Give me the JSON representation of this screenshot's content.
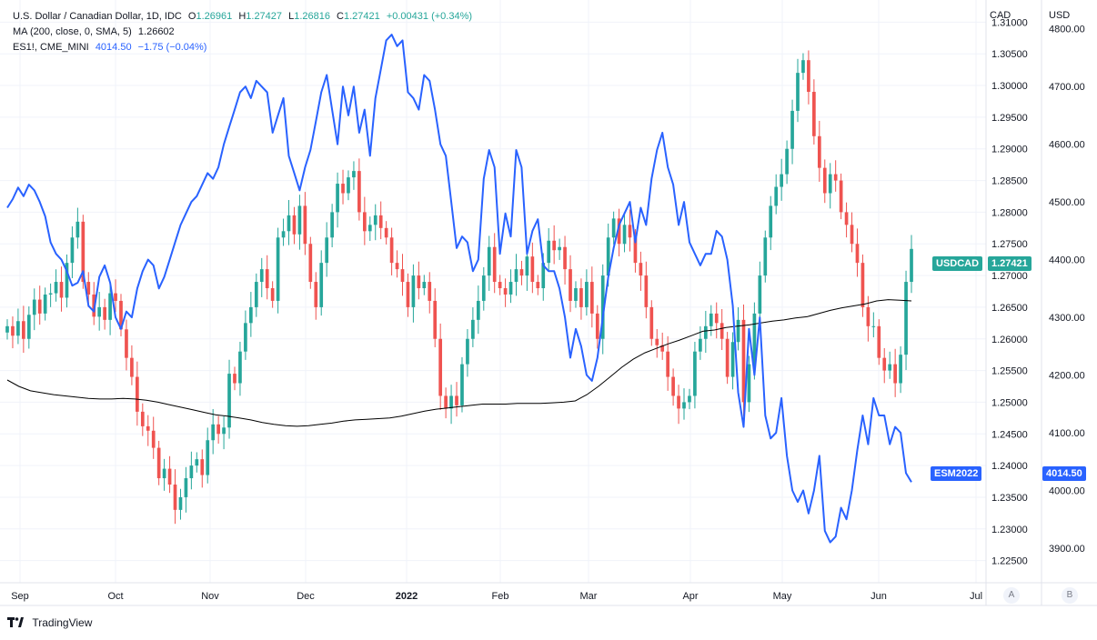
{
  "legend": {
    "title": "U.S. Dollar / Canadian Dollar, 1D, IDC",
    "o_label": "O",
    "o_value": "1.26961",
    "h_label": "H",
    "h_value": "1.27427",
    "l_label": "L",
    "l_value": "1.26816",
    "c_label": "C",
    "c_value": "1.27421",
    "change": "+0.00431 (+0.34%)",
    "ma_label": "MA (200, close, 0, SMA, 5)",
    "ma_value": "1.26602",
    "es_label": "ES1!, CME_MINI",
    "es_value": "4014.50",
    "es_change": "−1.75 (−0.04%)"
  },
  "axis_units": {
    "left": "CAD",
    "right": "USD"
  },
  "tags": {
    "usdcad_name": "USDCAD",
    "usdcad_value": "1.27421",
    "es_name": "ESM2022",
    "es_value": "4014.50"
  },
  "buttons": {
    "a": "A",
    "b": "B"
  },
  "footer": {
    "brand": "TradingView"
  },
  "colors": {
    "up": "#26a69a",
    "down": "#ef5350",
    "es": "#2962ff",
    "ma": "#000000",
    "grid": "#f0f3fa"
  },
  "chart_data": {
    "type": "candlestick+line",
    "x_ticks": [
      "Sep",
      "Oct",
      "Nov",
      "Dec",
      "2022",
      "Feb",
      "Mar",
      "Apr",
      "May",
      "Jun",
      "Jul"
    ],
    "cad_ticks": [
      "1.31000",
      "1.30500",
      "1.30000",
      "1.29500",
      "1.29000",
      "1.28500",
      "1.28000",
      "1.27500",
      "1.27000",
      "1.26500",
      "1.26000",
      "1.25500",
      "1.25000",
      "1.24500",
      "1.24000",
      "1.23500",
      "1.23000",
      "1.22500"
    ],
    "usd_ticks": [
      "4800.00",
      "4700.00",
      "4600.00",
      "4500.00",
      "4400.00",
      "4300.00",
      "4200.00",
      "4100.00",
      "4000.00",
      "3900.00"
    ],
    "cad_range": [
      1.2215,
      1.3135
    ],
    "usd_range": [
      3840,
      4850
    ],
    "usdcad_close": [
      1.262,
      1.2605,
      1.2628,
      1.26,
      1.2638,
      1.2662,
      1.264,
      1.267,
      1.2672,
      1.269,
      1.2665,
      1.272,
      1.276,
      1.2785,
      1.269,
      1.267,
      1.2635,
      1.265,
      1.263,
      1.2672,
      1.266,
      1.2615,
      1.257,
      1.254,
      1.2485,
      1.2462,
      1.2455,
      1.2428,
      1.238,
      1.2395,
      1.237,
      1.233,
      1.235,
      1.238,
      1.24,
      1.241,
      1.2385,
      1.244,
      1.2465,
      1.245,
      1.246,
      1.2545,
      1.253,
      1.258,
      1.2625,
      1.265,
      1.269,
      1.271,
      1.268,
      1.266,
      1.276,
      1.277,
      1.2795,
      1.2765,
      1.281,
      1.275,
      1.269,
      1.265,
      1.272,
      1.276,
      1.28,
      1.2845,
      1.283,
      1.2855,
      1.2865,
      1.28,
      1.277,
      1.278,
      1.2795,
      1.2775,
      1.276,
      1.272,
      1.271,
      1.269,
      1.265,
      1.27,
      1.268,
      1.269,
      1.266,
      1.26,
      1.251,
      1.249,
      1.251,
      1.2495,
      1.256,
      1.26,
      1.263,
      1.266,
      1.27,
      1.2745,
      1.269,
      1.268,
      1.267,
      1.269,
      1.271,
      1.27,
      1.273,
      1.269,
      1.268,
      1.272,
      1.2755,
      1.274,
      1.2745,
      1.271,
      1.266,
      1.268,
      1.265,
      1.269,
      1.264,
      1.26,
      1.27,
      1.276,
      1.279,
      1.275,
      1.278,
      1.276,
      1.272,
      1.27,
      1.265,
      1.26,
      1.259,
      1.258,
      1.254,
      1.251,
      1.249,
      1.25,
      1.251,
      1.258,
      1.26,
      1.262,
      1.264,
      1.2625,
      1.26,
      1.254,
      1.2595,
      1.263,
      1.25,
      1.256,
      1.264,
      1.27,
      1.276,
      1.281,
      1.284,
      1.286,
      1.29,
      1.296,
      1.302,
      1.304,
      1.299,
      1.292,
      1.287,
      1.283,
      1.286,
      1.285,
      1.28,
      1.278,
      1.275,
      1.272,
      1.265,
      1.262,
      1.262,
      1.257,
      1.255,
      1.256,
      1.253,
      1.2575,
      1.269,
      1.2742
    ],
    "es_close": [
      4490,
      4505,
      4525,
      4510,
      4530,
      4520,
      4500,
      4475,
      4430,
      4410,
      4400,
      4380,
      4355,
      4360,
      4380,
      4320,
      4310,
      4370,
      4390,
      4360,
      4300,
      4280,
      4310,
      4300,
      4350,
      4380,
      4400,
      4390,
      4350,
      4370,
      4400,
      4430,
      4460,
      4480,
      4500,
      4510,
      4530,
      4550,
      4540,
      4560,
      4600,
      4630,
      4660,
      4690,
      4700,
      4680,
      4710,
      4700,
      4690,
      4620,
      4650,
      4680,
      4580,
      4550,
      4520,
      4560,
      4590,
      4640,
      4690,
      4720,
      4660,
      4600,
      4700,
      4650,
      4700,
      4620,
      4660,
      4580,
      4680,
      4730,
      4780,
      4790,
      4770,
      4780,
      4690,
      4680,
      4660,
      4720,
      4710,
      4660,
      4600,
      4580,
      4500,
      4420,
      4440,
      4430,
      4380,
      4400,
      4540,
      4590,
      4560,
      4410,
      4480,
      4440,
      4590,
      4560,
      4410,
      4450,
      4470,
      4390,
      4380,
      4380,
      4350,
      4300,
      4230,
      4280,
      4250,
      4200,
      4190,
      4230,
      4300,
      4370,
      4420,
      4460,
      4480,
      4500,
      4430,
      4490,
      4460,
      4540,
      4590,
      4620,
      4560,
      4530,
      4460,
      4500,
      4430,
      4410,
      4390,
      4410,
      4410,
      4450,
      4440,
      4400,
      4320,
      4170,
      4110,
      4280,
      4200,
      4300,
      4130,
      4090,
      4100,
      4160,
      4060,
      4000,
      3980,
      4000,
      3960,
      4000,
      4060,
      3930,
      3910,
      3920,
      3970,
      3950,
      4000,
      4070,
      4130,
      4080,
      4160,
      4130,
      4130,
      4080,
      4110,
      4100,
      4030,
      4014.5
    ],
    "ma200": [
      1.2535,
      1.2525,
      1.2518,
      1.2515,
      1.2512,
      1.251,
      1.2508,
      1.2506,
      1.2505,
      1.2505,
      1.2506,
      1.2505,
      1.2503,
      1.25,
      1.2496,
      1.2492,
      1.2488,
      1.2484,
      1.248,
      1.2478,
      1.2475,
      1.2472,
      1.2468,
      1.2465,
      1.2463,
      1.2462,
      1.2463,
      1.2465,
      1.2467,
      1.247,
      1.2472,
      1.2473,
      1.2474,
      1.2475,
      1.2478,
      1.2482,
      1.2486,
      1.2489,
      1.2491,
      1.2493,
      1.2495,
      1.2497,
      1.2497,
      1.2497,
      1.2498,
      1.2498,
      1.2498,
      1.2499,
      1.25,
      1.2502,
      1.2512,
      1.2525,
      1.254,
      1.2555,
      1.2568,
      1.2578,
      1.2585,
      1.2592,
      1.2598,
      1.2605,
      1.2612,
      1.2614,
      1.2618,
      1.262,
      1.2622,
      1.2625,
      1.2628,
      1.263,
      1.2633,
      1.2635,
      1.264,
      1.2645,
      1.2649,
      1.2652,
      1.2655,
      1.266,
      1.2662,
      1.2661,
      1.266
    ]
  }
}
